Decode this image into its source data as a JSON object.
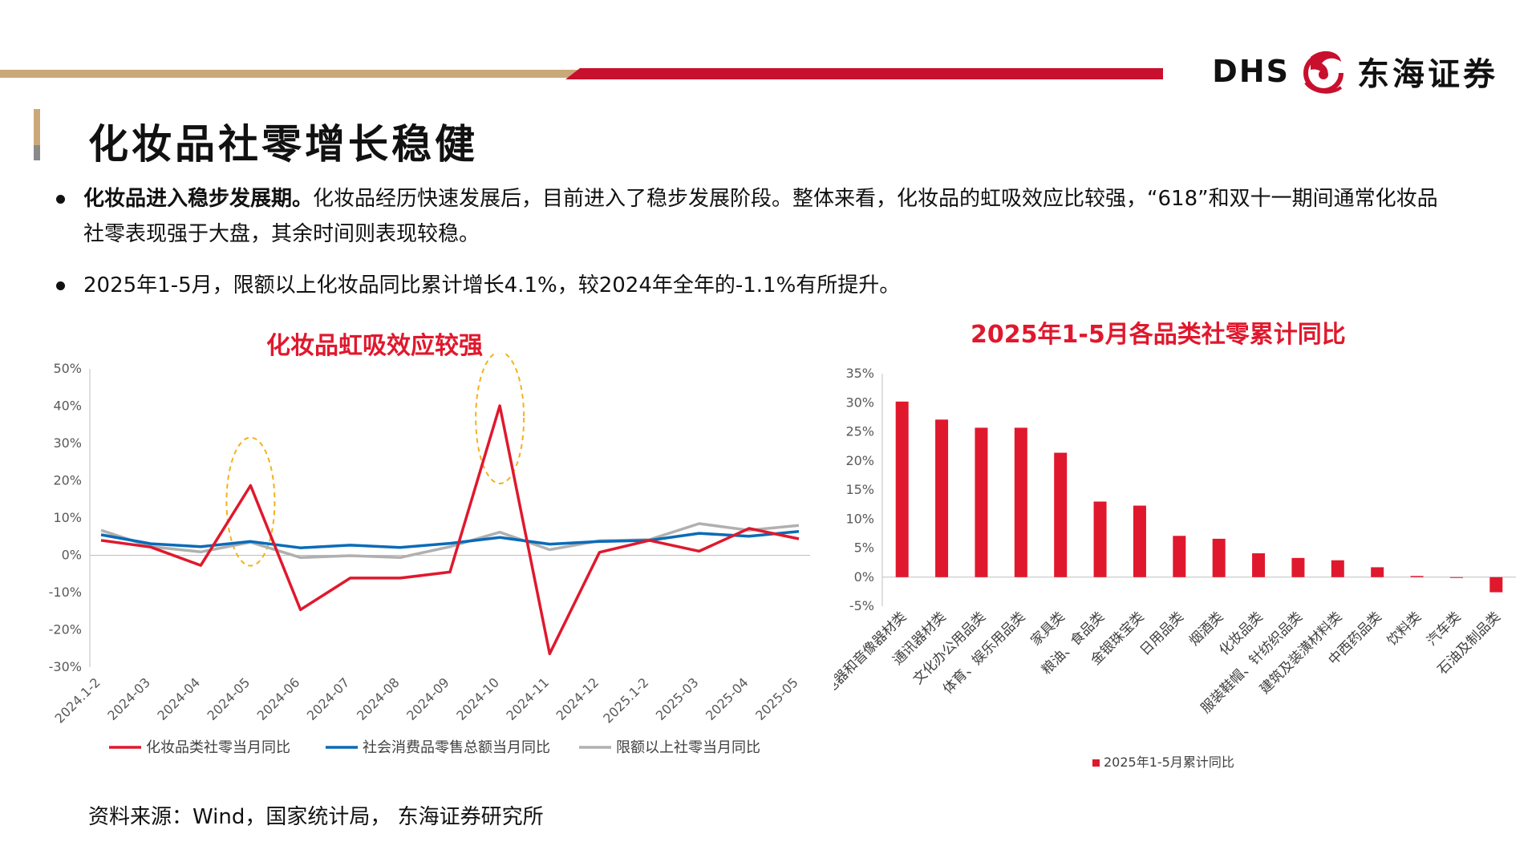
{
  "brand": {
    "name_latin": "DHS",
    "name_cn": "东海证券",
    "colors": {
      "red": "#c8102e",
      "gold": "#c9a97a",
      "blue": "#0a6bb8",
      "gray": "#b0b0b0"
    }
  },
  "page_title": "化妆品社零增长稳健",
  "bullets": [
    {
      "bold": "化妆品进入稳步发展期。",
      "text": "化妆品经历快速发展后，目前进入了稳步发展阶段。整体来看，化妆品的虹吸效应比较强，“618”和双十一期间通常化妆品社零表现强于大盘，其余时间则表现较稳。"
    },
    {
      "bold": "",
      "text": "2025年1-5月，限额以上化妆品同比累计增长4.1%，较2024年全年的-1.1%有所提升。"
    }
  ],
  "source": "资料来源：Wind，国家统计局， 东海证券研究所",
  "chart_data": [
    {
      "type": "line",
      "title": "化妆品虹吸效应较强",
      "x": [
        "2024.1-2",
        "2024-03",
        "2024-04",
        "2024-05",
        "2024-06",
        "2024-07",
        "2024-08",
        "2024-09",
        "2024-10",
        "2024-11",
        "2024-12",
        "2025.1-2",
        "2025-03",
        "2025-04",
        "2025-05"
      ],
      "ylim": [
        -30,
        50
      ],
      "yticks": [
        "50%",
        "40%",
        "30%",
        "20%",
        "10%",
        "0%",
        "-10%",
        "-20%",
        "-30%"
      ],
      "grid": false,
      "legend_position": "bottom",
      "highlight_ellipses_at": [
        "2024-05",
        "2024-10"
      ],
      "series": [
        {
          "name": "化妆品类社零当月同比",
          "color": "#e0182d",
          "values": [
            4.0,
            2.2,
            -2.7,
            18.7,
            -14.6,
            -6.1,
            -6.1,
            -4.5,
            40.1,
            -26.4,
            0.8,
            4.0,
            1.1,
            7.2,
            4.4
          ]
        },
        {
          "name": "社会消费品零售总额当月同比",
          "color": "#0a6bb8",
          "values": [
            5.5,
            3.1,
            2.3,
            3.7,
            2.0,
            2.7,
            2.1,
            3.2,
            4.8,
            3.0,
            3.7,
            4.0,
            5.9,
            5.1,
            6.4
          ]
        },
        {
          "name": "限额以上社零当月同比",
          "color": "#b0b0b0",
          "values": [
            6.7,
            2.3,
            0.9,
            3.5,
            -0.6,
            -0.1,
            -0.6,
            2.3,
            6.2,
            1.5,
            3.9,
            4.2,
            8.5,
            6.7,
            8.0
          ]
        }
      ]
    },
    {
      "type": "bar",
      "title": "2025年1-5月各品类社零累计同比",
      "categories": [
        "家用电器和音像器材类",
        "通讯器材类",
        "文化办公用品类",
        "体育、娱乐用品类",
        "家具类",
        "粮油、食品类",
        "金银珠宝类",
        "日用品类",
        "烟酒类",
        "化妆品类",
        "服装鞋帽、针纺织品类",
        "建筑及装潢材料类",
        "中西药品类",
        "饮料类",
        "汽车类",
        "石油及制品类"
      ],
      "ylim": [
        -5,
        35
      ],
      "yticks": [
        "35%",
        "30%",
        "25%",
        "20%",
        "15%",
        "10%",
        "5%",
        "0%",
        "-5%"
      ],
      "grid": false,
      "legend_position": "bottom",
      "series": [
        {
          "name": "2025年1-5月累计同比",
          "color": "#e0182d",
          "values": [
            30.2,
            27.1,
            25.7,
            25.7,
            21.4,
            13.0,
            12.3,
            7.1,
            6.6,
            4.1,
            3.3,
            2.9,
            1.7,
            0.2,
            -0.1,
            -2.6
          ]
        }
      ]
    }
  ]
}
